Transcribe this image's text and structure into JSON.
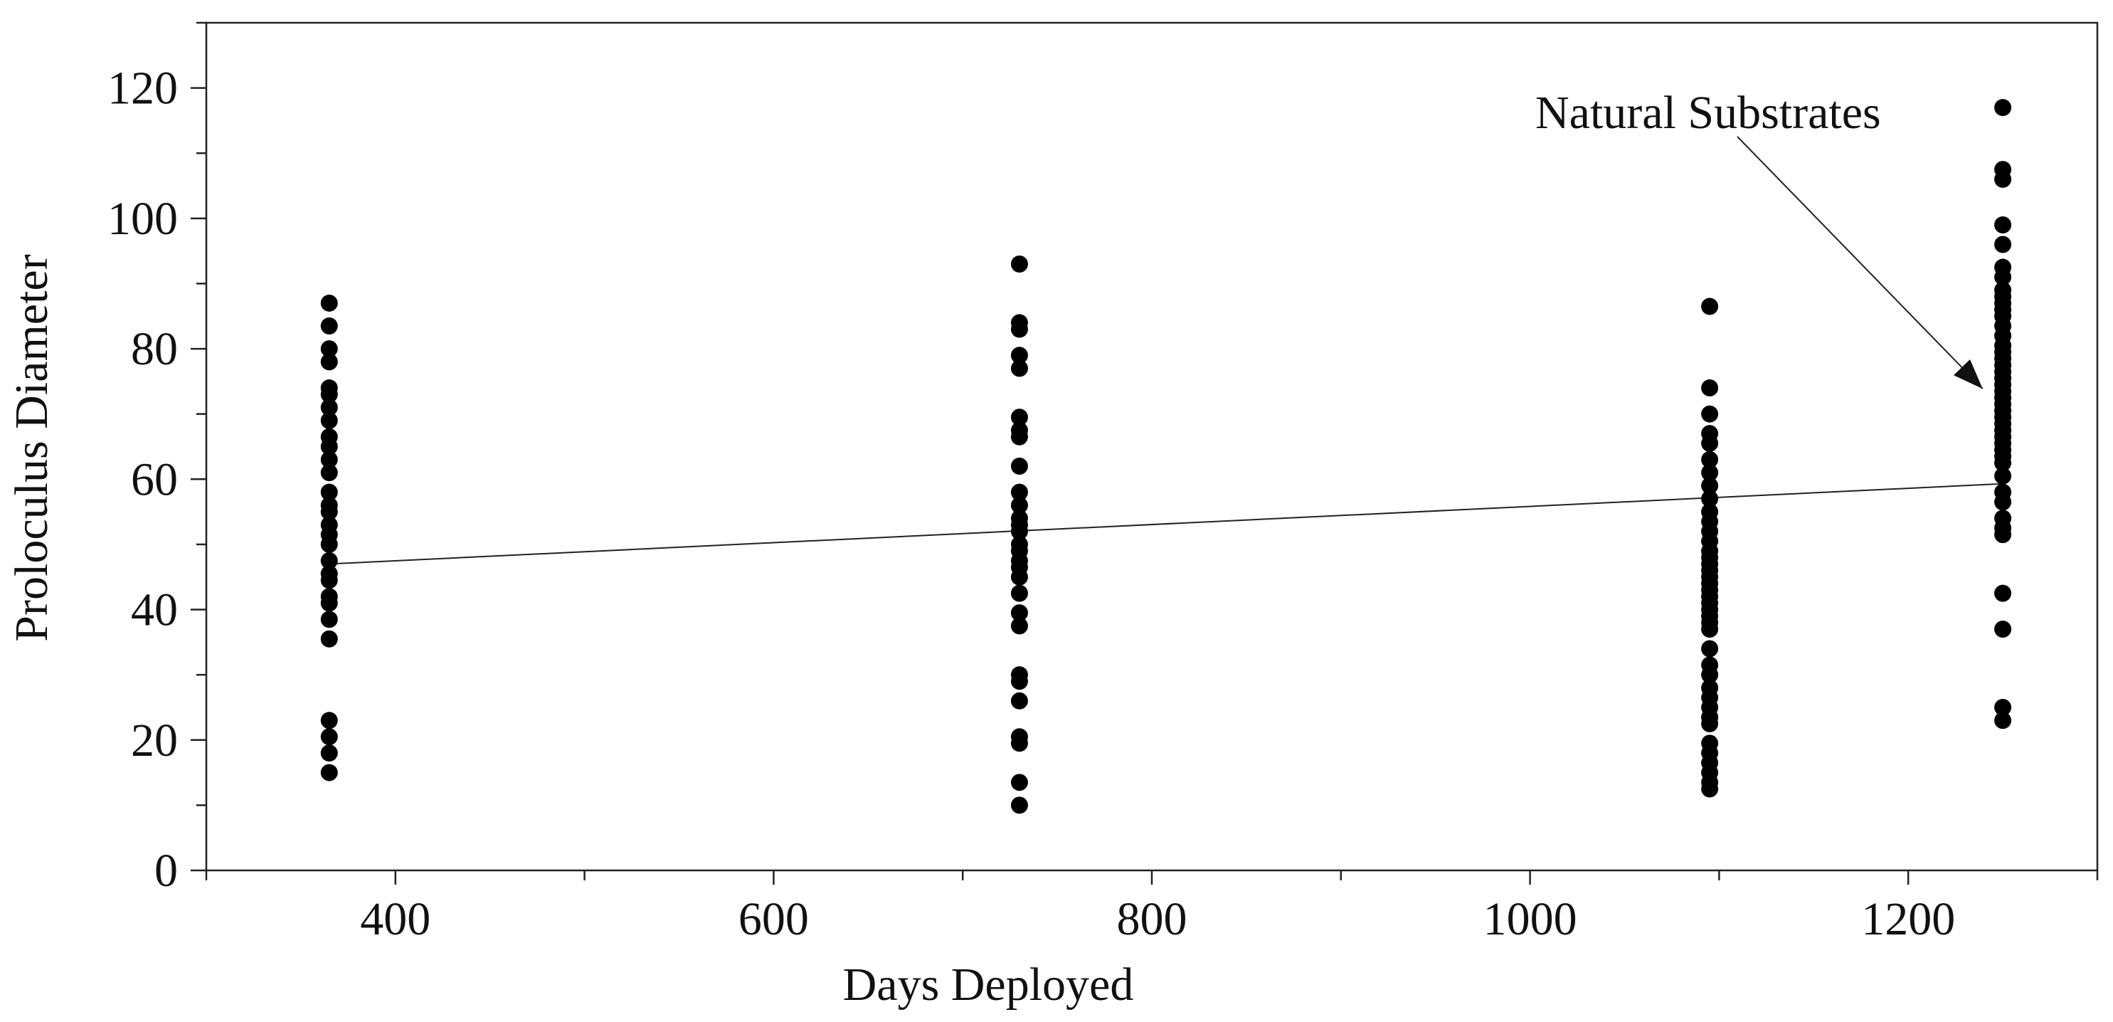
{
  "chart_data": {
    "type": "scatter",
    "title": "",
    "xlabel": "Days Deployed",
    "ylabel": "Proloculus Diameter",
    "xlim": [
      300,
      1300
    ],
    "ylim": [
      0,
      130
    ],
    "x_ticks": [
      400,
      600,
      800,
      1000,
      1200
    ],
    "x_tick_labels": [
      "400",
      "600",
      "800",
      "1000",
      "1200"
    ],
    "y_ticks": [
      0,
      20,
      40,
      60,
      80,
      100,
      120
    ],
    "y_tick_labels": [
      "0",
      "20",
      "40",
      "60",
      "80",
      "100",
      "120"
    ],
    "grid": false,
    "legend": "none",
    "marker_color": "#000000",
    "groups": [
      {
        "x": 365,
        "y": [
          87,
          83.5,
          80,
          78,
          74,
          73,
          71,
          69,
          66.5,
          65,
          63,
          61,
          58,
          56,
          55,
          53,
          51.5,
          50,
          47.5,
          45.5,
          44.5,
          42,
          41,
          38.5,
          35.5,
          23,
          20.5,
          18,
          15
        ]
      },
      {
        "x": 730,
        "y": [
          93,
          84,
          83,
          79,
          77,
          69.5,
          67.5,
          66.5,
          62,
          58,
          56,
          54,
          53,
          52,
          50,
          49,
          47.5,
          46.5,
          45,
          42.5,
          39.5,
          37.5,
          30,
          29,
          26,
          20.5,
          19.5,
          13.5,
          10
        ]
      },
      {
        "x": 1095,
        "y": [
          86.5,
          74,
          70,
          67,
          65.5,
          63,
          61,
          59,
          57,
          55,
          53.5,
          52,
          50.5,
          49,
          48,
          47,
          46,
          45,
          44,
          43,
          42,
          41,
          40,
          39,
          38,
          37,
          34,
          31.5,
          30,
          28,
          26.5,
          25,
          23.5,
          22.5,
          19.5,
          18,
          16.5,
          15,
          13.5,
          12.5
        ]
      },
      {
        "x": 1250,
        "y": [
          117,
          107.5,
          106,
          99,
          96,
          92.5,
          91,
          89,
          88,
          87,
          86,
          85,
          83.5,
          82,
          80.5,
          79.5,
          78.5,
          77.5,
          76.5,
          75.5,
          74.5,
          73.5,
          72.5,
          71.5,
          70.5,
          69.5,
          68.5,
          67.5,
          66.5,
          65.5,
          64.5,
          63.5,
          62.5,
          60.5,
          58,
          56.5,
          54,
          52.5,
          51.5,
          42.5,
          37,
          25,
          23
        ]
      }
    ],
    "regression": {
      "x": [
        365,
        1250
      ],
      "y": [
        47,
        59.3
      ]
    },
    "annotation": {
      "text": "Natural Substrates",
      "x": 1245,
      "y": 73
    }
  }
}
